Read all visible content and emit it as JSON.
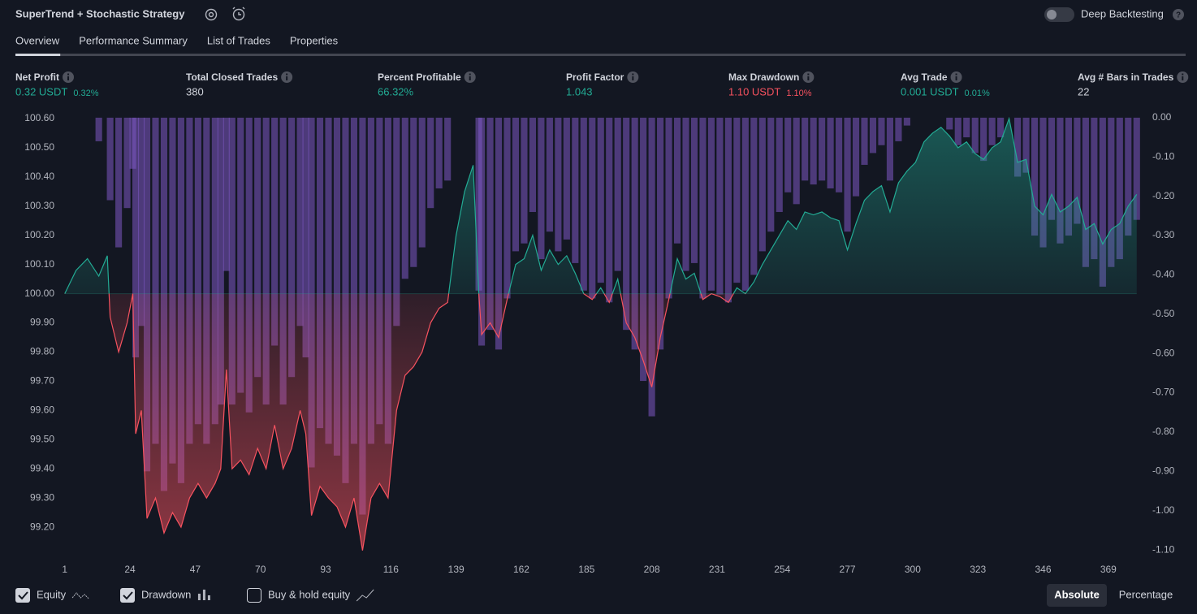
{
  "header": {
    "title": "SuperTrend + Stochastic Strategy",
    "toggle_label": "Deep Backtesting",
    "toggle_on": false
  },
  "tabs": {
    "items": [
      "Overview",
      "Performance Summary",
      "List of Trades",
      "Properties"
    ],
    "active": 0
  },
  "metrics": [
    {
      "label": "Net Profit",
      "value": "0.32 USDT",
      "sub": "0.32%",
      "color": "#22ab94"
    },
    {
      "label": "Total Closed Trades",
      "value": "380",
      "color": "#d1d4dc"
    },
    {
      "label": "Percent Profitable",
      "value": "66.32%",
      "color": "#22ab94"
    },
    {
      "label": "Profit Factor",
      "value": "1.043",
      "color": "#22ab94"
    },
    {
      "label": "Max Drawdown",
      "value": "1.10 USDT",
      "sub": "1.10%",
      "color": "#f7525f"
    },
    {
      "label": "Avg Trade",
      "value": "0.001 USDT",
      "sub": "0.01%",
      "color": "#22ab94"
    },
    {
      "label": "Avg # Bars in Trades",
      "value": "22",
      "color": "#d1d4dc"
    }
  ],
  "chart_data": {
    "type": "combo",
    "grid": false,
    "x": [
      1,
      5,
      9,
      13,
      16,
      17,
      20,
      23,
      25,
      26,
      28,
      30,
      33,
      36,
      39,
      42,
      45,
      48,
      51,
      54,
      56,
      58,
      60,
      63,
      66,
      69,
      72,
      75,
      78,
      81,
      84,
      86,
      88,
      91,
      94,
      97,
      100,
      103,
      106,
      109,
      112,
      115,
      118,
      121,
      124,
      127,
      130,
      133,
      136,
      139,
      142,
      145,
      147,
      148,
      151,
      154,
      157,
      160,
      163,
      166,
      169,
      172,
      175,
      178,
      181,
      184,
      187,
      190,
      193,
      196,
      199,
      202,
      205,
      208,
      211,
      214,
      217,
      220,
      223,
      226,
      229,
      232,
      235,
      238,
      241,
      244,
      247,
      250,
      253,
      256,
      259,
      262,
      265,
      268,
      271,
      274,
      277,
      280,
      283,
      286,
      289,
      292,
      295,
      298,
      301,
      304,
      307,
      310,
      313,
      316,
      319,
      322,
      325,
      328,
      331,
      334,
      337,
      340,
      343,
      346,
      349,
      352,
      355,
      358,
      361,
      364,
      367,
      370,
      373,
      376,
      379
    ],
    "xlim": [
      0.5,
      380.5
    ],
    "xticks": [
      1,
      24,
      47,
      70,
      93,
      116,
      139,
      162,
      185,
      208,
      231,
      254,
      277,
      300,
      323,
      346,
      369
    ],
    "ylim": [
      99.114,
      100.611
    ],
    "yticks": [
      {
        "value": 100.6,
        "label": "100.60"
      },
      {
        "value": 100.5,
        "label": "100.50"
      },
      {
        "value": 100.4,
        "label": "100.40"
      },
      {
        "value": 100.3,
        "label": "100.30"
      },
      {
        "value": 100.2,
        "label": "100.20"
      },
      {
        "value": 100.1,
        "label": "100.10"
      },
      {
        "value": 100,
        "label": "100.00"
      },
      {
        "value": 99.9,
        "label": "99.90"
      },
      {
        "value": 99.8,
        "label": "99.80"
      },
      {
        "value": 99.7,
        "label": "99.70"
      },
      {
        "value": 99.6,
        "label": "99.60"
      },
      {
        "value": 99.5,
        "label": "99.50"
      },
      {
        "value": 99.4,
        "label": "99.40"
      },
      {
        "value": 99.3,
        "label": "99.30"
      },
      {
        "value": 99.2,
        "label": "99.20"
      }
    ],
    "y2lim": [
      -1.106,
      0.006
    ],
    "y2ticks": [
      {
        "value": 0,
        "label": "0.00"
      },
      {
        "value": -0.1,
        "label": "-0.10"
      },
      {
        "value": -0.2,
        "label": "-0.20"
      },
      {
        "value": -0.3,
        "label": "-0.30"
      },
      {
        "value": -0.4,
        "label": "-0.40"
      },
      {
        "value": -0.5,
        "label": "-0.50"
      },
      {
        "value": -0.6,
        "label": "-0.60"
      },
      {
        "value": -0.7,
        "label": "-0.70"
      },
      {
        "value": -0.8,
        "label": "-0.80"
      },
      {
        "value": -0.9,
        "label": "-0.90"
      },
      {
        "value": -1,
        "label": "-1.00"
      },
      {
        "value": -1.1,
        "label": "-1.10"
      }
    ],
    "series": [
      {
        "name": "Equity",
        "type": "area",
        "visible": true,
        "color": "#22ab94",
        "negative_color": "#f7525f",
        "values": [
          100.0,
          100.08,
          100.12,
          100.06,
          100.13,
          99.92,
          99.8,
          99.9,
          100.0,
          99.52,
          99.6,
          99.23,
          99.3,
          99.18,
          99.25,
          99.2,
          99.3,
          99.35,
          99.3,
          99.35,
          99.4,
          99.74,
          99.4,
          99.43,
          99.38,
          99.47,
          99.4,
          99.55,
          99.4,
          99.47,
          99.6,
          99.52,
          99.24,
          99.34,
          99.3,
          99.27,
          99.2,
          99.3,
          99.12,
          99.3,
          99.35,
          99.3,
          99.6,
          99.72,
          99.75,
          99.8,
          99.9,
          99.95,
          99.97,
          100.2,
          100.35,
          100.44,
          100.0,
          99.86,
          99.9,
          99.85,
          99.98,
          100.1,
          100.12,
          100.2,
          100.08,
          100.15,
          100.1,
          100.13,
          100.07,
          100.0,
          99.98,
          100.02,
          99.97,
          100.05,
          99.9,
          99.85,
          99.77,
          99.68,
          99.85,
          99.98,
          100.12,
          100.05,
          100.07,
          99.98,
          100.0,
          99.99,
          99.97,
          100.02,
          100.0,
          100.04,
          100.1,
          100.15,
          100.2,
          100.25,
          100.22,
          100.28,
          100.27,
          100.28,
          100.26,
          100.25,
          100.15,
          100.24,
          100.32,
          100.35,
          100.37,
          100.28,
          100.38,
          100.42,
          100.45,
          100.52,
          100.55,
          100.57,
          100.54,
          100.5,
          100.52,
          100.48,
          100.46,
          100.5,
          100.52,
          100.6,
          100.45,
          100.46,
          100.3,
          100.27,
          100.34,
          100.28,
          100.3,
          100.33,
          100.22,
          100.24,
          100.17,
          100.22,
          100.24,
          100.3,
          100.34
        ]
      },
      {
        "name": "Drawdown",
        "type": "bar",
        "axis": "y2",
        "visible": true,
        "color": "#7e57c2",
        "values": [
          0,
          0,
          0,
          -0.06,
          0,
          -0.21,
          -0.33,
          -0.23,
          -0.13,
          -0.61,
          -0.53,
          -0.9,
          -0.83,
          -0.95,
          -0.88,
          -0.93,
          -0.83,
          -0.78,
          -0.83,
          -0.78,
          -0.73,
          -0.39,
          -0.73,
          -0.7,
          -0.75,
          -0.66,
          -0.73,
          -0.58,
          -0.73,
          -0.66,
          -0.53,
          -0.61,
          -0.89,
          -0.79,
          -0.83,
          -0.86,
          -0.93,
          -0.83,
          -1.01,
          -0.83,
          -0.78,
          -0.83,
          -0.53,
          -0.41,
          -0.38,
          -0.33,
          -0.23,
          -0.18,
          -0.16,
          0,
          0,
          0,
          -0.44,
          -0.58,
          -0.54,
          -0.59,
          -0.46,
          -0.34,
          -0.32,
          -0.24,
          -0.36,
          -0.29,
          -0.34,
          -0.31,
          -0.37,
          -0.44,
          -0.46,
          -0.42,
          -0.47,
          -0.39,
          -0.54,
          -0.59,
          -0.67,
          -0.76,
          -0.59,
          -0.46,
          -0.32,
          -0.39,
          -0.37,
          -0.46,
          -0.44,
          -0.45,
          -0.47,
          -0.42,
          -0.44,
          -0.4,
          -0.34,
          -0.29,
          -0.24,
          -0.19,
          -0.22,
          -0.16,
          -0.17,
          -0.16,
          -0.18,
          -0.19,
          -0.29,
          -0.2,
          -0.12,
          -0.09,
          -0.07,
          -0.16,
          -0.06,
          -0.02,
          0,
          0,
          0,
          0,
          -0.03,
          -0.07,
          -0.05,
          -0.09,
          -0.11,
          -0.07,
          -0.05,
          0,
          -0.15,
          -0.14,
          -0.3,
          -0.33,
          -0.26,
          -0.32,
          -0.3,
          -0.27,
          -0.38,
          -0.36,
          -0.43,
          -0.38,
          -0.36,
          -0.3,
          -0.26
        ]
      },
      {
        "name": "Buy & hold equity",
        "type": "line",
        "visible": false
      }
    ]
  },
  "scale_buttons": {
    "items": [
      "Absolute",
      "Percentage"
    ],
    "active": 0
  }
}
